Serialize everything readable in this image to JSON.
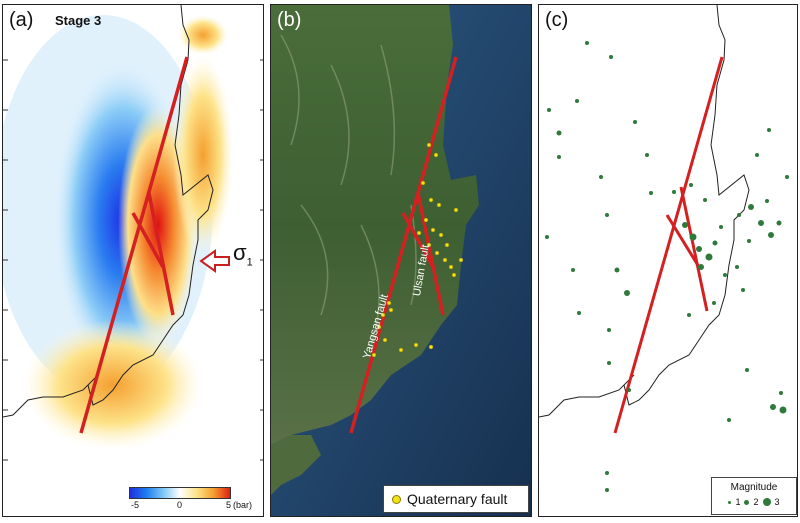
{
  "panels": {
    "a": {
      "label": "(a)",
      "stage": "Stage 3",
      "sigma": "σ",
      "sigma_sub": "1",
      "colorbar": {
        "min": "-5",
        "mid": "0",
        "max": "5",
        "unit": "(bar)"
      }
    },
    "b": {
      "label": "(b)",
      "fault_labels": [
        "Yangsan fault",
        "Ulsan fault"
      ],
      "legend": "Quaternary fault"
    },
    "c": {
      "label": "(c)",
      "legend_title": "Magnitude",
      "legend_items": [
        "1",
        "2",
        "3"
      ]
    }
  },
  "colors": {
    "fault": "#d42020",
    "quaternary": "#f4e11a",
    "quake": "#2f7a3a"
  }
}
